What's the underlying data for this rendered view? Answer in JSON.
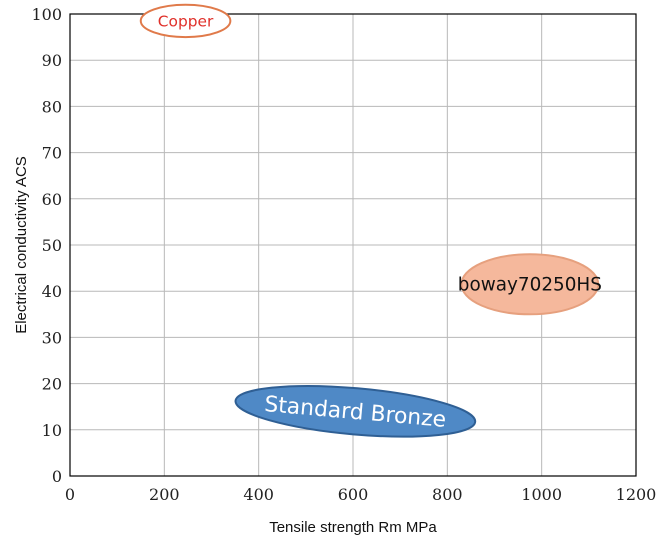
{
  "chart_data": {
    "type": "scatter",
    "title": "",
    "xlabel": "Tensile strength Rm MPa",
    "ylabel": "Electrical conductivity ACS",
    "xlim": [
      0,
      1200
    ],
    "ylim": [
      0,
      100
    ],
    "xticks": [
      0,
      200,
      400,
      600,
      800,
      1000,
      1200
    ],
    "yticks": [
      0,
      10,
      20,
      30,
      40,
      50,
      60,
      70,
      80,
      90,
      100
    ],
    "grid": true,
    "regions": [
      {
        "label": "Copper",
        "x": [
          150,
          340
        ],
        "y": [
          95,
          102
        ],
        "fill": "#ffffff",
        "stroke": "#e07a4a",
        "text_color": "#e0302a"
      },
      {
        "label": "boway70250HS",
        "x": [
          830,
          1120
        ],
        "y": [
          35,
          48
        ],
        "fill": "#f5b89c",
        "stroke": "#e6a07e",
        "text_color": "#111111"
      },
      {
        "label": "Standard Bronze",
        "x": [
          350,
          860
        ],
        "y": [
          9,
          19
        ],
        "tilt": -5,
        "fill": "#4f89c6",
        "stroke": "#2f5f94",
        "text_color": "#ffffff"
      }
    ]
  }
}
